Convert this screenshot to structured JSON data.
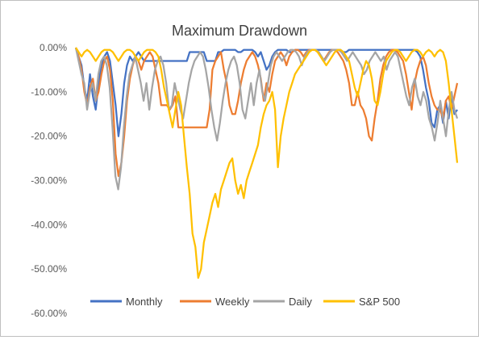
{
  "chart_data": {
    "type": "line",
    "title": "Maximum Drawdown",
    "xlabel": "",
    "ylabel": "",
    "ylim": [
      -60,
      0
    ],
    "yticks": [
      0,
      -10,
      -20,
      -30,
      -40,
      -50,
      -60
    ],
    "ytick_labels": [
      "0.00%",
      "-10.00%",
      "-20.00%",
      "-30.00%",
      "-40.00%",
      "-50.00%",
      "-60.00%"
    ],
    "grid": false,
    "legend_position": "bottom",
    "series": [
      {
        "name": "Monthly",
        "color": "#4472c4",
        "values": [
          0,
          -2,
          -4,
          -9,
          -12,
          -6,
          -11,
          -14,
          -8,
          -4,
          -2,
          -1,
          -3,
          -8,
          -13,
          -20,
          -15,
          -8,
          -4,
          -2,
          -3,
          -2,
          -1,
          -2,
          -3,
          -3,
          -3,
          -3,
          -3,
          -3,
          -3,
          -3,
          -3,
          -3,
          -3,
          -3,
          -3,
          -3,
          -3,
          -3,
          -1,
          -1,
          -1,
          -1,
          -1,
          -1,
          -3,
          -3,
          -3,
          -3,
          -1,
          -1,
          -0.5,
          -0.5,
          -0.5,
          -0.5,
          -0.5,
          -1,
          -1,
          -0.5,
          -0.5,
          -0.5,
          -0.5,
          -1,
          -2,
          -1,
          -3,
          -5,
          -4,
          -2,
          -1,
          -0.5,
          -0.5,
          -0.5,
          -0.5,
          -1,
          -1,
          -0.5,
          -0.5,
          -0.5,
          -0.5,
          -0.5,
          -0.5,
          -0.5,
          -0.5,
          -0.5,
          -0.5,
          -0.5,
          -0.5,
          -0.5,
          -0.5,
          -0.5,
          -0.5,
          -0.5,
          -1,
          -1,
          -0.5,
          -0.5,
          -0.5,
          -0.5,
          -0.5,
          -0.5,
          -0.5,
          -0.5,
          -0.5,
          -0.5,
          -0.5,
          -0.5,
          -0.5,
          -0.5,
          -0.5,
          -0.5,
          -0.5,
          -0.5,
          -0.5,
          -0.5,
          -0.5,
          -0.5,
          -0.5,
          -0.5,
          -1,
          -2,
          -5,
          -9,
          -12,
          -17,
          -18,
          -14,
          -13,
          -17,
          -12,
          -16,
          -11,
          -15,
          -14
        ],
        "values_cont": []
      },
      {
        "name": "Weekly",
        "color": "#ed7d31",
        "values": [
          0,
          -2,
          -5,
          -10,
          -13,
          -9,
          -7,
          -12,
          -10,
          -6,
          -3,
          -2,
          -5,
          -12,
          -24,
          -29,
          -26,
          -20,
          -12,
          -7,
          -4,
          -2,
          -3,
          -5,
          -3,
          -2,
          -1,
          -2,
          -5,
          -8,
          -13,
          -13,
          -13,
          -14,
          -13,
          -11,
          -18,
          -18,
          -18,
          -18,
          -18,
          -18,
          -18,
          -18,
          -18,
          -18,
          -18,
          -14,
          -5,
          -3,
          -2,
          -1,
          -5,
          -8,
          -13,
          -15,
          -15,
          -12,
          -8,
          -5,
          -3,
          -2,
          -1,
          -2,
          -4,
          -7,
          -12,
          -8,
          -10,
          -6,
          -3,
          -2,
          -1,
          -2,
          -4,
          -2,
          -1,
          -0.5,
          -0.5,
          -1,
          -2,
          -1,
          -0.5,
          -0.5,
          -0.5,
          -1,
          -2,
          -3,
          -2,
          -1,
          -0.5,
          -0.5,
          -1,
          -2,
          -3,
          -5,
          -8,
          -13,
          -13,
          -10,
          -13,
          -14,
          -16,
          -20,
          -21,
          -16,
          -12,
          -7,
          -4,
          -2,
          -1,
          -0.5,
          -0.5,
          -1,
          -2,
          -3,
          -6,
          -10,
          -14,
          -8,
          -5,
          -3,
          -2,
          -4,
          -8,
          -11,
          -13,
          -14,
          -14,
          -16,
          -12,
          -11,
          -14,
          -11,
          -8
        ],
        "values_cont": []
      },
      {
        "name": "Daily",
        "color": "#a5a5a5",
        "values": [
          0,
          -3,
          -6,
          -8,
          -14,
          -10,
          -8,
          -12,
          -6,
          -3,
          -2,
          -4,
          -9,
          -18,
          -29,
          -32,
          -27,
          -18,
          -11,
          -6,
          -4,
          -2,
          -5,
          -8,
          -12,
          -8,
          -14,
          -9,
          -5,
          -3,
          -2,
          -4,
          -8,
          -14,
          -13,
          -8,
          -11,
          -14,
          -16,
          -12,
          -8,
          -5,
          -3,
          -2,
          -1,
          -2,
          -5,
          -9,
          -14,
          -18,
          -21,
          -17,
          -12,
          -8,
          -5,
          -3,
          -2,
          -4,
          -8,
          -14,
          -16,
          -12,
          -8,
          -13,
          -8,
          -5,
          -10,
          -12,
          -8,
          -4,
          -2,
          -1,
          -2,
          -3,
          -2,
          -1,
          -0.5,
          -0.5,
          -1,
          -2,
          -4,
          -2,
          -1,
          -0.5,
          -0.5,
          -0.5,
          -1,
          -2,
          -3,
          -2,
          -1,
          -0.5,
          -0.5,
          -0.5,
          -1,
          -2,
          -3,
          -2,
          -1,
          -2,
          -3,
          -4,
          -6,
          -5,
          -3,
          -2,
          -1,
          -2,
          -3,
          -2,
          -5,
          -3,
          -2,
          -1,
          -2,
          -5,
          -8,
          -11,
          -13,
          -9,
          -7,
          -11,
          -13,
          -10,
          -12,
          -16,
          -18,
          -21,
          -17,
          -12,
          -16,
          -20,
          -14,
          -10,
          -14,
          -16
        ],
        "values_cont": []
      },
      {
        "name": "S&P 500",
        "color": "#ffc000",
        "values": [
          0,
          -1,
          -2,
          -1,
          -0.5,
          -1,
          -2,
          -3,
          -2,
          -1,
          -0.5,
          -0.5,
          -0.5,
          -1,
          -2,
          -3,
          -2,
          -1,
          -0.5,
          -0.5,
          -1,
          -2,
          -3,
          -2,
          -1,
          -0.5,
          -0.5,
          -0.5,
          -1,
          -2,
          -5,
          -9,
          -12,
          -15,
          -18,
          -14,
          -10,
          -13,
          -20,
          -27,
          -33,
          -42,
          -45,
          -52,
          -50,
          -44,
          -41,
          -38,
          -35,
          -33,
          -36,
          -32,
          -30,
          -28,
          -26,
          -25,
          -30,
          -33,
          -31,
          -34,
          -30,
          -28,
          -26,
          -24,
          -22,
          -18,
          -15,
          -13,
          -12,
          -10,
          -14,
          -27,
          -20,
          -16,
          -13,
          -10,
          -8,
          -6,
          -5,
          -4,
          -3,
          -2,
          -1,
          -0.5,
          -0.5,
          -1,
          -2,
          -3,
          -4,
          -3,
          -2,
          -1,
          -0.5,
          -0.5,
          -1,
          -2,
          -3,
          -6,
          -9,
          -11,
          -8,
          -5,
          -3,
          -4,
          -7,
          -12,
          -13,
          -10,
          -6,
          -3,
          -2,
          -1,
          -0.5,
          -0.5,
          -1,
          -2,
          -3,
          -2,
          -1,
          -0.5,
          -0.5,
          -1,
          -2,
          -1,
          -0.5,
          -1,
          -2,
          -1,
          -0.5,
          -1,
          -3,
          -8,
          -14,
          -20,
          -26
        ],
        "values_cont": []
      }
    ]
  }
}
